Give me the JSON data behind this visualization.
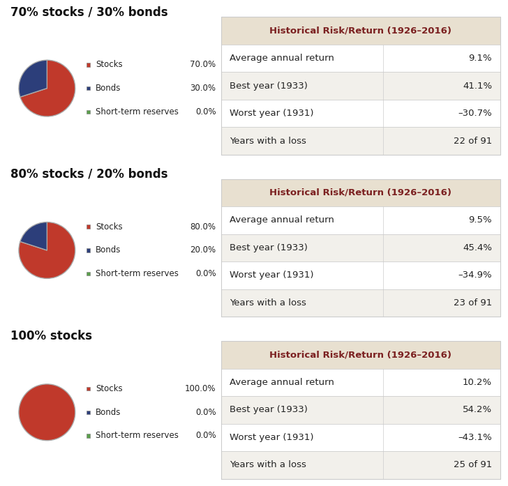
{
  "portfolios": [
    {
      "title": "70% stocks / 30% bonds",
      "pie_values": [
        70.0,
        30.0,
        0.0
      ],
      "pie_colors": [
        "#c0392b",
        "#2c3e7a",
        "#5a9e4b"
      ],
      "legend_labels": [
        "Stocks",
        "Bonds",
        "Short-term reserves"
      ],
      "legend_pcts": [
        "70.0%",
        "30.0%",
        "0.0%"
      ],
      "table_title": "Historical Risk/Return (1926–2016)",
      "rows": [
        [
          "Average annual return",
          "9.1%"
        ],
        [
          "Best year (1933)",
          "41.1%"
        ],
        [
          "Worst year (1931)",
          "–30.7%"
        ],
        [
          "Years with a loss",
          "22 of 91"
        ]
      ]
    },
    {
      "title": "80% stocks / 20% bonds",
      "pie_values": [
        80.0,
        20.0,
        0.0
      ],
      "pie_colors": [
        "#c0392b",
        "#2c3e7a",
        "#5a9e4b"
      ],
      "legend_labels": [
        "Stocks",
        "Bonds",
        "Short-term reserves"
      ],
      "legend_pcts": [
        "80.0%",
        "20.0%",
        "0.0%"
      ],
      "table_title": "Historical Risk/Return (1926–2016)",
      "rows": [
        [
          "Average annual return",
          "9.5%"
        ],
        [
          "Best year (1933)",
          "45.4%"
        ],
        [
          "Worst year (1931)",
          "–34.9%"
        ],
        [
          "Years with a loss",
          "23 of 91"
        ]
      ]
    },
    {
      "title": "100% stocks",
      "pie_values": [
        100.0,
        0.0,
        0.0
      ],
      "pie_colors": [
        "#c0392b",
        "#2c3e7a",
        "#5a9e4b"
      ],
      "legend_labels": [
        "Stocks",
        "Bonds",
        "Short-term reserves"
      ],
      "legend_pcts": [
        "100.0%",
        "0.0%",
        "0.0%"
      ],
      "table_title": "Historical Risk/Return (1926–2016)",
      "rows": [
        [
          "Average annual return",
          "10.2%"
        ],
        [
          "Best year (1933)",
          "54.2%"
        ],
        [
          "Worst year (1931)",
          "–43.1%"
        ],
        [
          "Years with a loss",
          "25 of 91"
        ]
      ]
    }
  ],
  "bg_color": "#ffffff",
  "table_header_bg": "#e8e0d0",
  "table_header_color": "#7b2020",
  "table_row_bg1": "#ffffff",
  "table_row_bg2": "#f2f0eb",
  "table_border_color": "#cccccc",
  "title_fontsize": 12,
  "table_fontsize": 9.5,
  "legend_fontsize": 8.5,
  "title_color": "#111111",
  "pie_edge_color": "#888888",
  "col_split": 0.58
}
